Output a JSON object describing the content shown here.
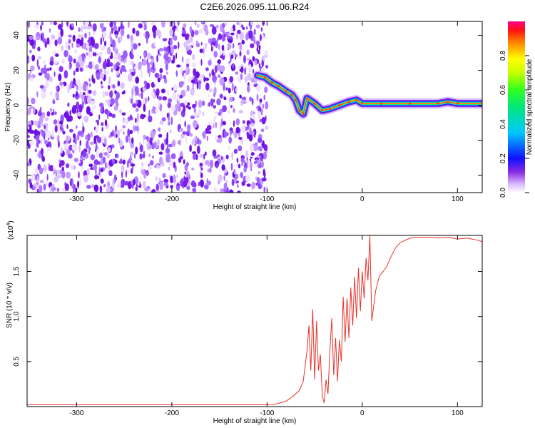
{
  "title": "C2E6.2026.095.11.06.R24",
  "top_panel": {
    "xlabel": "Height of straight line (km)",
    "ylabel": "Frequency (Hz)",
    "xticks": [
      "-300",
      "-200",
      "-100",
      "0",
      "100"
    ],
    "yticks": [
      "40",
      "20",
      "0",
      "-20",
      "-40"
    ],
    "colorbar": {
      "label": "Normalized spectral amplitude",
      "ticks": [
        "0.0",
        "0.2",
        "0.4",
        "0.6",
        "0.8"
      ]
    }
  },
  "bottom_panel": {
    "xlabel": "Height of straight line (km)",
    "ylabel": "SNR (10 * v/v)",
    "scale_note": "(x10",
    "scale_exp": "4",
    "scale_close": ")",
    "xticks": [
      "-300",
      "-200",
      "-100",
      "0",
      "100"
    ],
    "yticks": [
      "1.5",
      "1.0",
      "0.5"
    ]
  },
  "chart_data": [
    {
      "type": "heatmap",
      "xlabel": "Height of straight line (km)",
      "ylabel": "Frequency (Hz)",
      "xlim": [
        -352,
        126
      ],
      "ylim": [
        -50,
        48
      ],
      "color_scale": "Normalized spectral amplitude",
      "colorbar_range": [
        0,
        1
      ],
      "noise_region_x": [
        -352,
        -100
      ],
      "ridge": [
        {
          "x": -110,
          "y": 17
        },
        {
          "x": -102,
          "y": 16
        },
        {
          "x": -95,
          "y": 13
        },
        {
          "x": -88,
          "y": 11
        },
        {
          "x": -80,
          "y": 8
        },
        {
          "x": -74,
          "y": 6
        },
        {
          "x": -70,
          "y": 3
        },
        {
          "x": -66,
          "y": -3
        },
        {
          "x": -62,
          "y": -5
        },
        {
          "x": -58,
          "y": 4
        },
        {
          "x": -50,
          "y": 1
        },
        {
          "x": -42,
          "y": -3
        },
        {
          "x": -34,
          "y": -2
        },
        {
          "x": -24,
          "y": 0
        },
        {
          "x": -14,
          "y": 2
        },
        {
          "x": -6,
          "y": 3
        },
        {
          "x": 0,
          "y": 1
        },
        {
          "x": 20,
          "y": 1
        },
        {
          "x": 50,
          "y": 1
        },
        {
          "x": 80,
          "y": 1
        },
        {
          "x": 90,
          "y": 2
        },
        {
          "x": 100,
          "y": 1
        },
        {
          "x": 126,
          "y": 1
        }
      ]
    },
    {
      "type": "line",
      "xlabel": "Height of straight line (km)",
      "ylabel": "SNR (10 * v/v)",
      "xlim": [
        -352,
        126
      ],
      "ylim": [
        0,
        1.9
      ],
      "color": "#e8322a",
      "series": [
        {
          "x": [
            -352,
            -300,
            -250,
            -200,
            -150,
            -120,
            -100,
            -90,
            -80,
            -72,
            -66,
            -62,
            -58,
            -56,
            -54,
            -52,
            -50,
            -48,
            -46,
            -44,
            -42,
            -40,
            -38,
            -36,
            -34,
            -32,
            -30,
            -28,
            -26,
            -24,
            -22,
            -20,
            -18,
            -16,
            -14,
            -12,
            -10,
            -8,
            -6,
            -4,
            -2,
            0,
            2,
            4,
            6,
            8,
            10,
            14,
            18,
            22,
            26,
            30,
            35,
            40,
            50,
            60,
            70,
            80,
            90,
            100,
            110,
            120,
            126
          ],
          "values": [
            0.02,
            0.02,
            0.02,
            0.02,
            0.02,
            0.02,
            0.02,
            0.03,
            0.06,
            0.12,
            0.18,
            0.28,
            0.62,
            0.9,
            0.4,
            1.08,
            0.3,
            0.95,
            0.4,
            0.58,
            0.12,
            0.04,
            0.3,
            0.14,
            0.62,
            0.98,
            0.35,
            0.76,
            0.28,
            0.74,
            0.5,
            1.22,
            0.72,
            1.2,
            0.76,
            1.32,
            0.9,
            1.44,
            0.98,
            1.54,
            1.06,
            1.5,
            1.2,
            1.65,
            1.4,
            1.9,
            0.95,
            1.28,
            1.45,
            1.5,
            1.56,
            1.66,
            1.76,
            1.82,
            1.87,
            1.88,
            1.88,
            1.87,
            1.88,
            1.86,
            1.87,
            1.85,
            1.83
          ]
        }
      ]
    }
  ]
}
